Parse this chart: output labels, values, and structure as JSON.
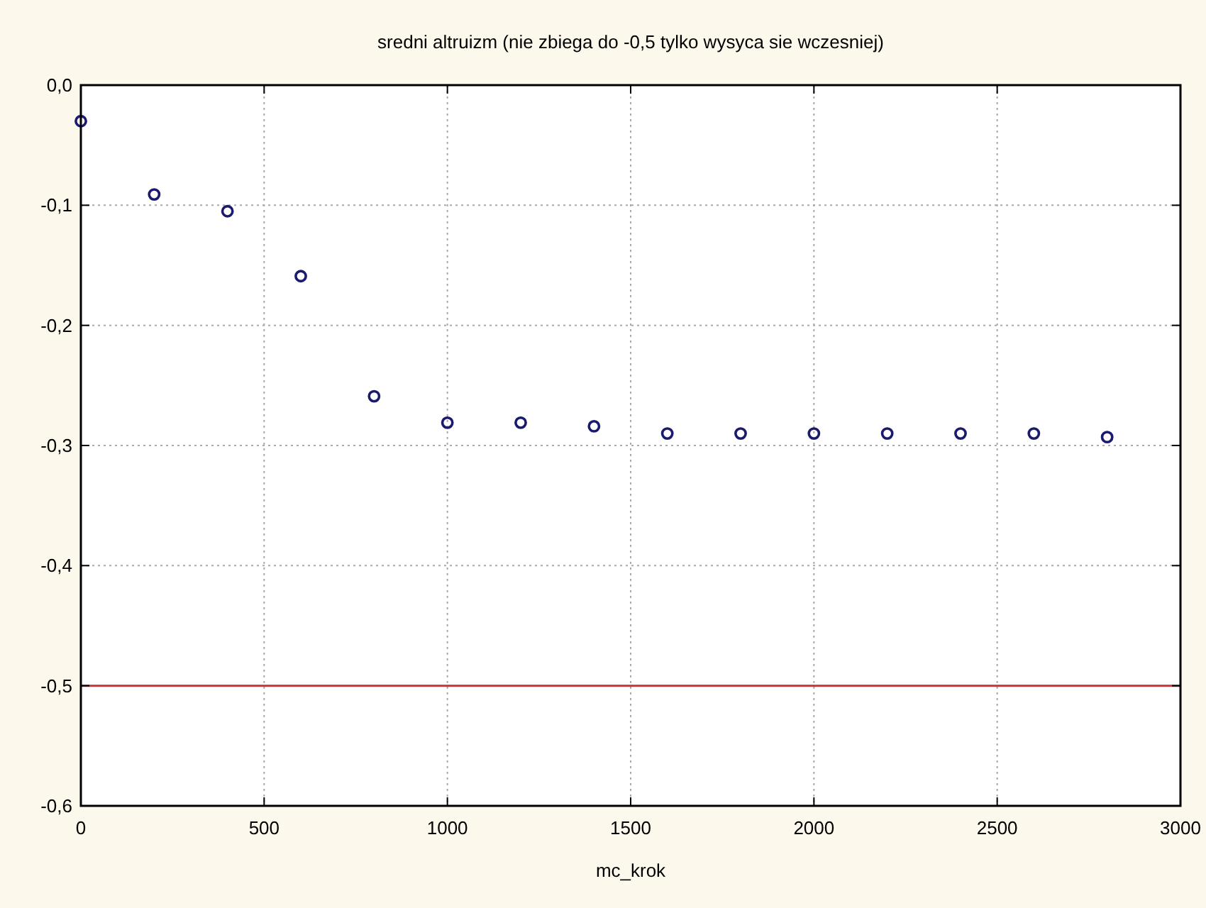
{
  "chart_data": {
    "type": "scatter",
    "title": "sredni altruizm (nie zbiega do -0,5 tylko wysyca sie wczesniej)",
    "xlabel": "mc_krok",
    "x": [
      0,
      200,
      400,
      600,
      800,
      1000,
      1200,
      1400,
      1600,
      1800,
      2000,
      2200,
      2400,
      2600,
      2800
    ],
    "series": [
      {
        "color": "#1a1a6e",
        "values": [
          -0.03,
          -0.091,
          -0.105,
          -0.159,
          -0.259,
          -0.281,
          -0.281,
          -0.284,
          -0.29,
          -0.29,
          -0.29,
          -0.29,
          -0.29,
          -0.29,
          -0.293
        ]
      }
    ],
    "xlim": [
      0,
      3000
    ],
    "xticks": [
      0,
      500,
      1000,
      1500,
      2000,
      2500,
      3000
    ],
    "ylim": [
      -0.6,
      0
    ],
    "yticks": [
      {
        "value": -0.6,
        "label": "-0,6"
      },
      {
        "value": -0.5,
        "label": "-0,5"
      },
      {
        "value": -0.4,
        "label": "-0,4"
      },
      {
        "value": -0.3,
        "label": "-0,3"
      },
      {
        "value": -0.2,
        "label": "-0,2"
      },
      {
        "value": -0.1,
        "label": "-0,1"
      },
      {
        "value": 0,
        "label": "0,0"
      }
    ],
    "ref_lines": [
      {
        "axis": "y",
        "value": -0.5,
        "color": "#c83232"
      }
    ],
    "grid": true,
    "marker": "circle"
  }
}
